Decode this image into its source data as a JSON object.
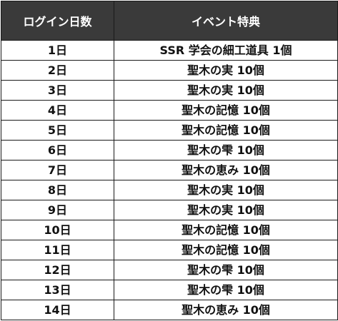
{
  "table": {
    "headers": {
      "day": "ログイン日数",
      "reward": "イベント特典"
    },
    "rows": [
      {
        "day": "1日",
        "reward": "SSR 学会の細工道具 1個"
      },
      {
        "day": "2日",
        "reward": "聖木の実 10個"
      },
      {
        "day": "3日",
        "reward": "聖木の実 10個"
      },
      {
        "day": "4日",
        "reward": "聖木の記憶 10個"
      },
      {
        "day": "5日",
        "reward": "聖木の記憶 10個"
      },
      {
        "day": "6日",
        "reward": "聖木の雫 10個"
      },
      {
        "day": "7日",
        "reward": "聖木の恵み 10個"
      },
      {
        "day": "8日",
        "reward": "聖木の実 10個"
      },
      {
        "day": "9日",
        "reward": "聖木の実 10個"
      },
      {
        "day": "10日",
        "reward": "聖木の記憶 10個"
      },
      {
        "day": "11日",
        "reward": "聖木の記憶 10個"
      },
      {
        "day": "12日",
        "reward": "聖木の雫 10個"
      },
      {
        "day": "13日",
        "reward": "聖木の雫 10個"
      },
      {
        "day": "14日",
        "reward": "聖木の恵み 10個"
      }
    ]
  },
  "colors": {
    "header_bg": "#3a3a3a",
    "header_text": "#ffffff",
    "border": "#1a1a1a",
    "body_text": "#111111"
  }
}
